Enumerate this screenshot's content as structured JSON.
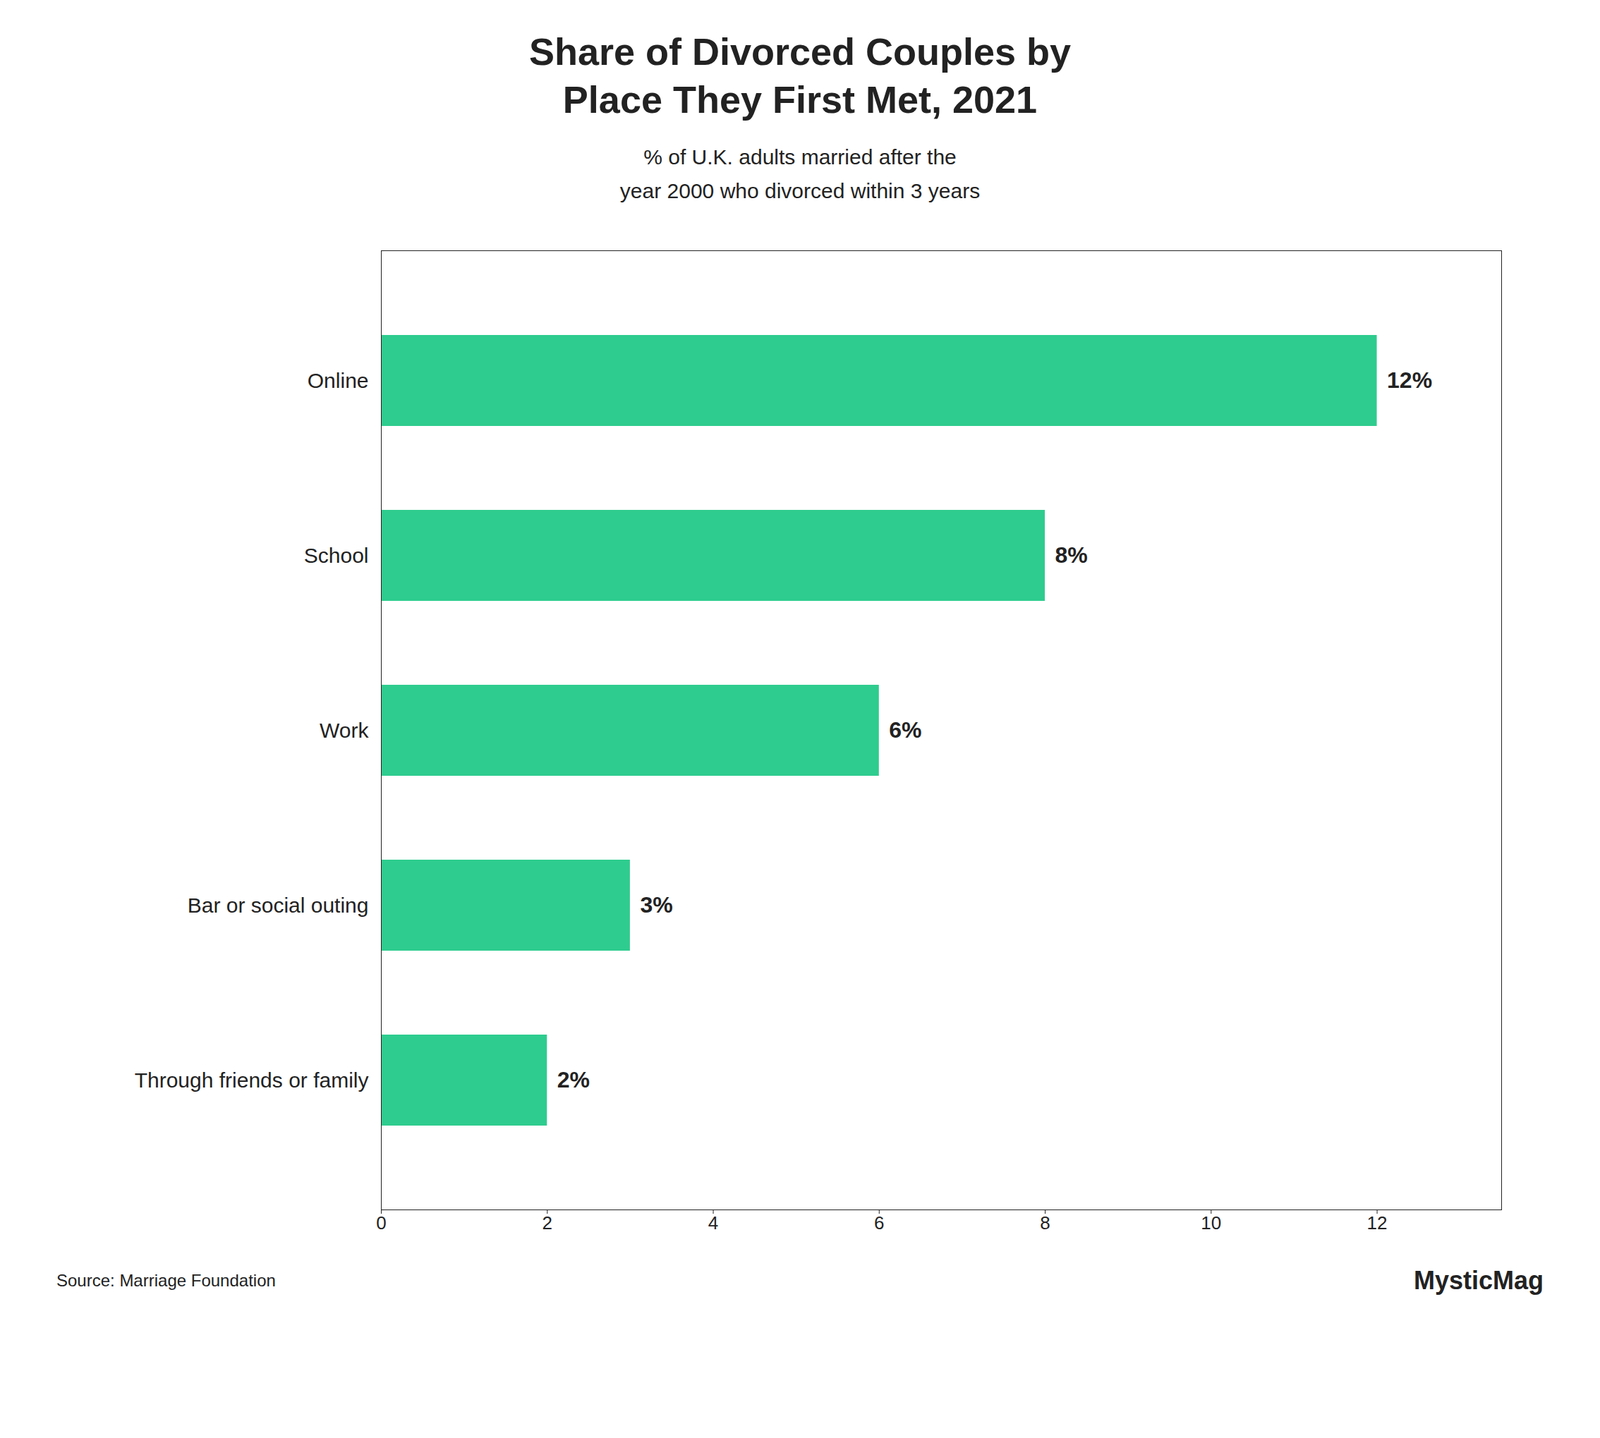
{
  "chart_data": {
    "type": "bar",
    "orientation": "horizontal",
    "title": "Share of Divorced Couples by\nPlace They First Met, 2021",
    "subtitle": "% of U.K. adults married after the\nyear 2000 who divorced within 3 years",
    "categories": [
      "Online",
      "School",
      "Work",
      "Bar or social outing",
      "Through friends or family"
    ],
    "values": [
      12,
      8,
      6,
      3,
      2
    ],
    "value_labels": [
      "12%",
      "8%",
      "6%",
      "3%",
      "2%"
    ],
    "data_labels": true,
    "color": "#2ecc8e",
    "xlim": [
      0,
      13.5
    ],
    "xticks": [
      0,
      2,
      4,
      6,
      8,
      10,
      12
    ],
    "grid": false,
    "caption": "Source: Marriage Foundation",
    "brand": "MysticMag"
  }
}
